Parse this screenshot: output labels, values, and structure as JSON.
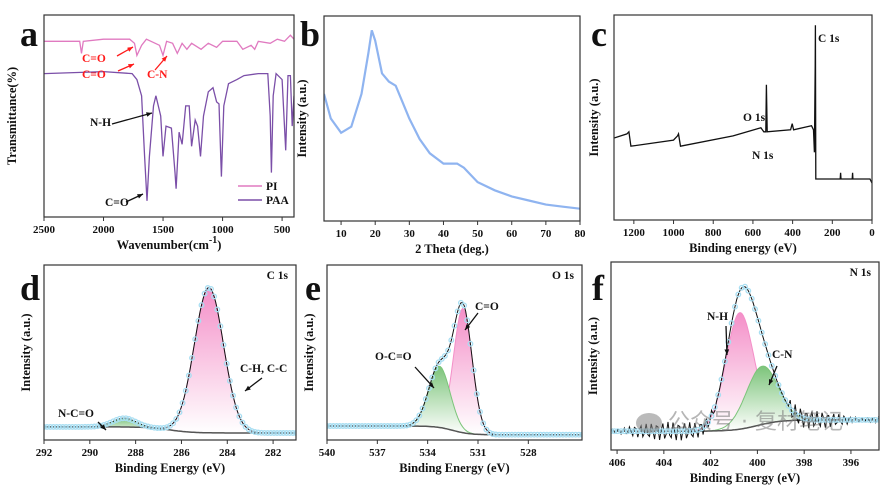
{
  "chart_data": [
    {
      "panel": "a",
      "type": "line",
      "xlabel": "Wavenumber(cm",
      "xlabel_sup": "-1",
      "xlabel_suffix": ")",
      "ylabel": "Transmittance(%)",
      "xlim": [
        2500,
        400
      ],
      "xticks": [
        2500,
        2000,
        1500,
        1000,
        500
      ],
      "legend": {
        "placement": "bottom-right",
        "entries": [
          "PI",
          "PAA"
        ]
      },
      "series": [
        {
          "name": "PI",
          "color": "#e07ac0",
          "points": [
            [
              2500,
              0.87
            ],
            [
              2200,
              0.87
            ],
            [
              2185,
              0.81
            ],
            [
              2170,
              0.87
            ],
            [
              2000,
              0.88
            ],
            [
              1780,
              0.88
            ],
            [
              1740,
              0.86
            ],
            [
              1720,
              0.8
            ],
            [
              1680,
              0.85
            ],
            [
              1640,
              0.88
            ],
            [
              1530,
              0.85
            ],
            [
              1500,
              0.8
            ],
            [
              1470,
              0.87
            ],
            [
              1420,
              0.86
            ],
            [
              1380,
              0.81
            ],
            [
              1340,
              0.86
            ],
            [
              1300,
              0.83
            ],
            [
              1260,
              0.86
            ],
            [
              1180,
              0.83
            ],
            [
              1120,
              0.86
            ],
            [
              1050,
              0.84
            ],
            [
              1000,
              0.87
            ],
            [
              880,
              0.87
            ],
            [
              830,
              0.83
            ],
            [
              760,
              0.85
            ],
            [
              730,
              0.83
            ],
            [
              700,
              0.87
            ],
            [
              600,
              0.86
            ],
            [
              540,
              0.88
            ],
            [
              480,
              0.87
            ],
            [
              430,
              0.9
            ],
            [
              400,
              0.88
            ]
          ]
        },
        {
          "name": "PAA",
          "color": "#7b4fa8",
          "points": [
            [
              2500,
              0.71
            ],
            [
              2000,
              0.72
            ],
            [
              1760,
              0.71
            ],
            [
              1720,
              0.68
            ],
            [
              1680,
              0.6
            ],
            [
              1655,
              0.3
            ],
            [
              1635,
              0.08
            ],
            [
              1615,
              0.3
            ],
            [
              1580,
              0.55
            ],
            [
              1560,
              0.6
            ],
            [
              1540,
              0.55
            ],
            [
              1520,
              0.5
            ],
            [
              1500,
              0.3
            ],
            [
              1475,
              0.45
            ],
            [
              1430,
              0.44
            ],
            [
              1400,
              0.22
            ],
            [
              1390,
              0.14
            ],
            [
              1365,
              0.42
            ],
            [
              1340,
              0.36
            ],
            [
              1310,
              0.55
            ],
            [
              1280,
              0.55
            ],
            [
              1260,
              0.35
            ],
            [
              1230,
              0.48
            ],
            [
              1210,
              0.45
            ],
            [
              1185,
              0.3
            ],
            [
              1160,
              0.5
            ],
            [
              1120,
              0.62
            ],
            [
              1080,
              0.64
            ],
            [
              1050,
              0.57
            ],
            [
              1030,
              0.56
            ],
            [
              1010,
              0.2
            ],
            [
              990,
              0.55
            ],
            [
              950,
              0.66
            ],
            [
              880,
              0.68
            ],
            [
              820,
              0.7
            ],
            [
              700,
              0.71
            ],
            [
              620,
              0.71
            ],
            [
              600,
              0.5
            ],
            [
              590,
              0.22
            ],
            [
              575,
              0.6
            ],
            [
              550,
              0.71
            ],
            [
              500,
              0.68
            ],
            [
              470,
              0.33
            ],
            [
              450,
              0.7
            ],
            [
              430,
              0.7
            ],
            [
              415,
              0.45
            ],
            [
              400,
              0.6
            ]
          ]
        }
      ],
      "annotations": [
        "C=O",
        "C=O",
        "C-N",
        "N-H",
        "C=O"
      ]
    },
    {
      "panel": "b",
      "type": "line",
      "xlabel": "2 Theta (deg.)",
      "ylabel": "Intensity (a.u.)",
      "xlim": [
        5,
        80
      ],
      "xticks": [
        10,
        20,
        30,
        40,
        50,
        60,
        70,
        80
      ],
      "series": [
        {
          "color": "#8fb4f0",
          "points": [
            [
              5,
              0.62
            ],
            [
              7,
              0.5
            ],
            [
              10,
              0.43
            ],
            [
              13,
              0.46
            ],
            [
              16,
              0.62
            ],
            [
              18,
              0.82
            ],
            [
              19,
              0.93
            ],
            [
              20,
              0.88
            ],
            [
              22,
              0.72
            ],
            [
              24,
              0.68
            ],
            [
              26,
              0.66
            ],
            [
              28,
              0.58
            ],
            [
              30,
              0.5
            ],
            [
              33,
              0.4
            ],
            [
              36,
              0.33
            ],
            [
              40,
              0.28
            ],
            [
              44,
              0.28
            ],
            [
              46,
              0.26
            ],
            [
              50,
              0.19
            ],
            [
              55,
              0.15
            ],
            [
              60,
              0.12
            ],
            [
              65,
              0.1
            ],
            [
              70,
              0.08
            ],
            [
              75,
              0.07
            ],
            [
              80,
              0.06
            ]
          ]
        }
      ],
      "annotations": []
    },
    {
      "panel": "c",
      "type": "line",
      "xlabel": "Binding energy (eV)",
      "ylabel": "Intensity (a.u.)",
      "xlim": [
        1300,
        0
      ],
      "xticks": [
        1200,
        1000,
        800,
        600,
        400,
        200,
        0
      ],
      "series": [
        {
          "color": "#111111",
          "points": [
            [
              1300,
              0.4
            ],
            [
              1235,
              0.42
            ],
            [
              1225,
              0.43
            ],
            [
              1215,
              0.36
            ],
            [
              1000,
              0.39
            ],
            [
              980,
              0.41
            ],
            [
              975,
              0.42
            ],
            [
              965,
              0.36
            ],
            [
              700,
              0.41
            ],
            [
              560,
              0.45
            ],
            [
              545,
              0.43
            ],
            [
              535,
              0.43
            ],
            [
              532,
              0.66
            ],
            [
              528,
              0.43
            ],
            [
              410,
              0.44
            ],
            [
              402,
              0.47
            ],
            [
              395,
              0.44
            ],
            [
              305,
              0.46
            ],
            [
              295,
              0.44
            ],
            [
              290,
              0.33
            ],
            [
              286,
              0.75
            ],
            [
              285,
              0.95
            ],
            [
              283,
              0.2
            ],
            [
              160,
              0.2
            ],
            [
              158,
              0.23
            ],
            [
              156,
              0.2
            ],
            [
              100,
              0.2
            ],
            [
              98,
              0.23
            ],
            [
              96,
              0.2
            ],
            [
              10,
              0.2
            ],
            [
              0,
              0.18
            ]
          ]
        }
      ],
      "annotations": [
        "C 1s",
        "O 1s",
        "N 1s"
      ]
    },
    {
      "panel": "d",
      "type": "line",
      "title": "C 1s",
      "xlabel": "Binding Energy (eV)",
      "ylabel": "Intensity (a.u.)",
      "xlim": [
        292,
        281
      ],
      "xticks": [
        292,
        290,
        288,
        286,
        284,
        282
      ],
      "background": {
        "left": 0.075,
        "right": 0.04,
        "step": 286.5
      },
      "components": [
        {
          "name": "C-H, C-C",
          "center": 284.8,
          "amplitude": 0.83,
          "fwhm": 1.5,
          "color": "#f48fc8"
        },
        {
          "name": "N-C=O",
          "center": 288.5,
          "amplitude": 0.05,
          "fwhm": 1.2,
          "color": "#7cc47a"
        }
      ],
      "annotations": [
        "N-C=O",
        "C-H, C-C"
      ]
    },
    {
      "panel": "e",
      "type": "line",
      "title": "O 1s",
      "xlabel": "Binding Energy (eV)",
      "ylabel": "Intensity (a.u.)",
      "xlim": [
        540,
        524.8
      ],
      "xticks": [
        540,
        537,
        534,
        531,
        528
      ],
      "background": {
        "left": 0.08,
        "right": 0.03,
        "step": 532.5
      },
      "components": [
        {
          "name": "C=O",
          "center": 531.9,
          "amplitude": 0.71,
          "fwhm": 1.3,
          "color": "#f48fc8"
        },
        {
          "name": "O-C=O",
          "center": 533.3,
          "amplitude": 0.35,
          "fwhm": 1.5,
          "color": "#7cc47a"
        }
      ],
      "annotations": [
        "C=O",
        "O-C=O"
      ]
    },
    {
      "panel": "f",
      "type": "line",
      "title": "N 1s",
      "xlabel": "Binding Energy (eV)",
      "ylabel": "Intensity (a.u.)",
      "xlim": [
        406.26,
        394.8
      ],
      "xticks": [
        406,
        404,
        402,
        400,
        398,
        396
      ],
      "background": {
        "left": 0.1,
        "right": 0.16,
        "step": 400
      },
      "components": [
        {
          "name": "N-H",
          "center": 400.75,
          "amplitude": 0.62,
          "fwhm": 1.4,
          "color": "#f48fc8"
        },
        {
          "name": "C-N",
          "center": 399.8,
          "amplitude": 0.31,
          "fwhm": 1.6,
          "color": "#7cc47a"
        }
      ],
      "annotations": [
        "N-H",
        "C-N"
      ]
    }
  ],
  "colors": {
    "annotation_red": "#ff1a1a",
    "raw_data": "#a8def2"
  },
  "watermark": "公众号 · 复材笔记"
}
